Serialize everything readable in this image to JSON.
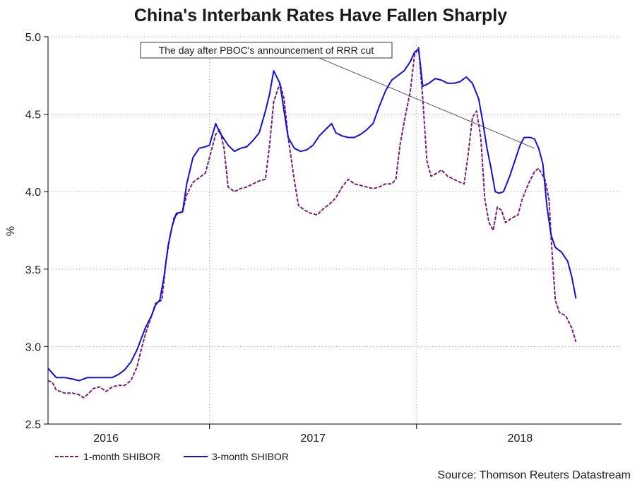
{
  "chart_data": {
    "type": "line",
    "title": "China's Interbank Rates Have Fallen Sharply",
    "ylabel": "%",
    "xlabel": "",
    "ylim": [
      2.5,
      5.0
    ],
    "yticks": [
      "2.5",
      "3.0",
      "3.5",
      "4.0",
      "4.5",
      "5.0"
    ],
    "x_range": [
      2015.72,
      2018.49
    ],
    "x_ticks": [
      {
        "label": "2016",
        "x": 2016.0
      },
      {
        "label": "2017",
        "x": 2017.0
      },
      {
        "label": "2018",
        "x": 2018.0
      }
    ],
    "year_boundaries": [
      2016.5,
      2017.5,
      2018.5
    ],
    "grid": true,
    "legend_position": "bottom-left",
    "series": [
      {
        "name": "1-month SHIBOR",
        "color": "#7a1c7a",
        "style": "dashed",
        "points": [
          [
            2015.72,
            2.78
          ],
          [
            2015.74,
            2.77
          ],
          [
            2015.76,
            2.72
          ],
          [
            2015.8,
            2.7
          ],
          [
            2015.84,
            2.7
          ],
          [
            2015.87,
            2.69
          ],
          [
            2015.89,
            2.67
          ],
          [
            2015.91,
            2.69
          ],
          [
            2015.94,
            2.73
          ],
          [
            2015.97,
            2.74
          ],
          [
            2016.0,
            2.71
          ],
          [
            2016.03,
            2.74
          ],
          [
            2016.06,
            2.75
          ],
          [
            2016.09,
            2.75
          ],
          [
            2016.12,
            2.78
          ],
          [
            2016.15,
            2.87
          ],
          [
            2016.17,
            2.98
          ],
          [
            2016.19,
            3.08
          ],
          [
            2016.22,
            3.2
          ],
          [
            2016.24,
            3.28
          ],
          [
            2016.27,
            3.3
          ],
          [
            2016.29,
            3.55
          ],
          [
            2016.31,
            3.72
          ],
          [
            2016.33,
            3.84
          ],
          [
            2016.35,
            3.86
          ],
          [
            2016.37,
            3.87
          ],
          [
            2016.39,
            3.98
          ],
          [
            2016.42,
            4.06
          ],
          [
            2016.45,
            4.09
          ],
          [
            2016.48,
            4.12
          ],
          [
            2016.5,
            4.22
          ],
          [
            2016.53,
            4.37
          ],
          [
            2016.55,
            4.4
          ],
          [
            2016.57,
            4.28
          ],
          [
            2016.59,
            4.03
          ],
          [
            2016.62,
            4.0
          ],
          [
            2016.65,
            4.02
          ],
          [
            2016.68,
            4.03
          ],
          [
            2016.71,
            4.05
          ],
          [
            2016.74,
            4.07
          ],
          [
            2016.77,
            4.08
          ],
          [
            2016.79,
            4.3
          ],
          [
            2016.81,
            4.58
          ],
          [
            2016.84,
            4.7
          ],
          [
            2016.86,
            4.6
          ],
          [
            2016.88,
            4.35
          ],
          [
            2016.91,
            4.07
          ],
          [
            2016.93,
            3.91
          ],
          [
            2016.96,
            3.88
          ],
          [
            2016.99,
            3.86
          ],
          [
            2017.02,
            3.85
          ],
          [
            2017.05,
            3.89
          ],
          [
            2017.08,
            3.92
          ],
          [
            2017.11,
            3.96
          ],
          [
            2017.14,
            4.03
          ],
          [
            2017.17,
            4.08
          ],
          [
            2017.2,
            4.05
          ],
          [
            2017.23,
            4.04
          ],
          [
            2017.26,
            4.03
          ],
          [
            2017.29,
            4.02
          ],
          [
            2017.32,
            4.03
          ],
          [
            2017.35,
            4.05
          ],
          [
            2017.38,
            4.05
          ],
          [
            2017.4,
            4.08
          ],
          [
            2017.42,
            4.3
          ],
          [
            2017.44,
            4.45
          ],
          [
            2017.47,
            4.65
          ],
          [
            2017.49,
            4.88
          ],
          [
            2017.51,
            4.93
          ],
          [
            2017.53,
            4.6
          ],
          [
            2017.55,
            4.2
          ],
          [
            2017.57,
            4.1
          ],
          [
            2017.6,
            4.12
          ],
          [
            2017.62,
            4.14
          ],
          [
            2017.65,
            4.1
          ],
          [
            2017.68,
            4.08
          ],
          [
            2017.71,
            4.06
          ],
          [
            2017.73,
            4.05
          ],
          [
            2017.75,
            4.25
          ],
          [
            2017.77,
            4.48
          ],
          [
            2017.79,
            4.52
          ],
          [
            2017.81,
            4.35
          ],
          [
            2017.83,
            3.95
          ],
          [
            2017.85,
            3.8
          ],
          [
            2017.87,
            3.75
          ],
          [
            2017.89,
            3.9
          ],
          [
            2017.91,
            3.88
          ],
          [
            2017.93,
            3.8
          ],
          [
            2017.96,
            3.83
          ],
          [
            2017.99,
            3.85
          ],
          [
            2018.01,
            3.95
          ],
          [
            2018.04,
            4.05
          ],
          [
            2018.07,
            4.13
          ],
          [
            2018.09,
            4.15
          ],
          [
            2018.12,
            4.08
          ],
          [
            2018.14,
            3.95
          ],
          [
            2018.15,
            3.7
          ],
          [
            2018.16,
            3.5
          ],
          [
            2018.17,
            3.3
          ],
          [
            2018.19,
            3.22
          ],
          [
            2018.22,
            3.2
          ],
          [
            2018.25,
            3.12
          ],
          [
            2018.27,
            3.03
          ]
        ]
      },
      {
        "name": "3-month SHIBOR",
        "color": "#1010d8",
        "style": "solid",
        "points": [
          [
            2015.72,
            2.86
          ],
          [
            2015.74,
            2.83
          ],
          [
            2015.76,
            2.8
          ],
          [
            2015.8,
            2.8
          ],
          [
            2015.84,
            2.79
          ],
          [
            2015.87,
            2.78
          ],
          [
            2015.89,
            2.79
          ],
          [
            2015.91,
            2.8
          ],
          [
            2015.94,
            2.8
          ],
          [
            2015.97,
            2.8
          ],
          [
            2016.0,
            2.8
          ],
          [
            2016.03,
            2.8
          ],
          [
            2016.06,
            2.82
          ],
          [
            2016.09,
            2.85
          ],
          [
            2016.12,
            2.9
          ],
          [
            2016.15,
            2.98
          ],
          [
            2016.17,
            3.05
          ],
          [
            2016.19,
            3.12
          ],
          [
            2016.22,
            3.2
          ],
          [
            2016.24,
            3.27
          ],
          [
            2016.26,
            3.3
          ],
          [
            2016.28,
            3.45
          ],
          [
            2016.3,
            3.65
          ],
          [
            2016.32,
            3.78
          ],
          [
            2016.34,
            3.86
          ],
          [
            2016.37,
            3.87
          ],
          [
            2016.39,
            4.05
          ],
          [
            2016.42,
            4.22
          ],
          [
            2016.45,
            4.28
          ],
          [
            2016.48,
            4.29
          ],
          [
            2016.5,
            4.3
          ],
          [
            2016.53,
            4.44
          ],
          [
            2016.55,
            4.38
          ],
          [
            2016.57,
            4.34
          ],
          [
            2016.59,
            4.3
          ],
          [
            2016.62,
            4.26
          ],
          [
            2016.65,
            4.28
          ],
          [
            2016.68,
            4.29
          ],
          [
            2016.71,
            4.33
          ],
          [
            2016.74,
            4.38
          ],
          [
            2016.77,
            4.52
          ],
          [
            2016.79,
            4.63
          ],
          [
            2016.81,
            4.78
          ],
          [
            2016.84,
            4.7
          ],
          [
            2016.86,
            4.52
          ],
          [
            2016.88,
            4.35
          ],
          [
            2016.91,
            4.28
          ],
          [
            2016.94,
            4.26
          ],
          [
            2016.97,
            4.27
          ],
          [
            2017.0,
            4.3
          ],
          [
            2017.03,
            4.36
          ],
          [
            2017.06,
            4.4
          ],
          [
            2017.09,
            4.44
          ],
          [
            2017.11,
            4.38
          ],
          [
            2017.14,
            4.36
          ],
          [
            2017.17,
            4.35
          ],
          [
            2017.2,
            4.35
          ],
          [
            2017.23,
            4.37
          ],
          [
            2017.26,
            4.4
          ],
          [
            2017.29,
            4.44
          ],
          [
            2017.32,
            4.55
          ],
          [
            2017.35,
            4.65
          ],
          [
            2017.38,
            4.72
          ],
          [
            2017.41,
            4.75
          ],
          [
            2017.44,
            4.78
          ],
          [
            2017.47,
            4.84
          ],
          [
            2017.49,
            4.9
          ],
          [
            2017.51,
            4.92
          ],
          [
            2017.53,
            4.68
          ],
          [
            2017.56,
            4.7
          ],
          [
            2017.59,
            4.73
          ],
          [
            2017.62,
            4.72
          ],
          [
            2017.65,
            4.7
          ],
          [
            2017.68,
            4.7
          ],
          [
            2017.71,
            4.71
          ],
          [
            2017.74,
            4.74
          ],
          [
            2017.77,
            4.7
          ],
          [
            2017.8,
            4.6
          ],
          [
            2017.82,
            4.45
          ],
          [
            2017.84,
            4.28
          ],
          [
            2017.86,
            4.15
          ],
          [
            2017.88,
            4.0
          ],
          [
            2017.9,
            3.99
          ],
          [
            2017.92,
            4.0
          ],
          [
            2017.95,
            4.1
          ],
          [
            2017.98,
            4.22
          ],
          [
            2018.0,
            4.3
          ],
          [
            2018.02,
            4.35
          ],
          [
            2018.05,
            4.35
          ],
          [
            2018.07,
            4.34
          ],
          [
            2018.09,
            4.28
          ],
          [
            2018.11,
            4.18
          ],
          [
            2018.13,
            3.9
          ],
          [
            2018.15,
            3.72
          ],
          [
            2018.17,
            3.64
          ],
          [
            2018.2,
            3.61
          ],
          [
            2018.23,
            3.55
          ],
          [
            2018.25,
            3.45
          ],
          [
            2018.27,
            3.31
          ]
        ]
      }
    ],
    "annotation": {
      "text": "The day after PBOC's announcement of RRR cut",
      "target": [
        2018.07,
        4.28
      ]
    }
  },
  "source_text": "Source: Thomson Reuters Datastream"
}
